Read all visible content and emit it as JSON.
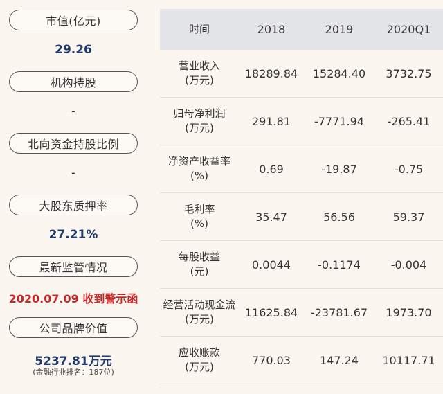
{
  "metrics": [
    {
      "label": "市值(亿元)",
      "value": "29.26"
    },
    {
      "label": "机构持股",
      "value": "-"
    },
    {
      "label": "北向资金持股比例",
      "value": "-"
    },
    {
      "label": "大股东质押率",
      "value": "27.21%"
    },
    {
      "label": "最新监管情况",
      "value": "2020.07.09 收到警示函"
    },
    {
      "label": "公司品牌价值",
      "value": "5237.81万元",
      "note": "(金融行业排名：187位)"
    }
  ],
  "table": {
    "headers": [
      "时间",
      "2018",
      "2019",
      "2020Q1"
    ],
    "rows": [
      {
        "label1": "营业收入",
        "label2": "(万元)",
        "values": [
          "18289.84",
          "15284.40",
          "3732.75"
        ]
      },
      {
        "label1": "归母净利润",
        "label2": "(万元)",
        "values": [
          "291.81",
          "-7771.94",
          "-265.41"
        ]
      },
      {
        "label1": "净资产收益率",
        "label2": "(%)",
        "values": [
          "0.69",
          "-19.87",
          "-0.75"
        ]
      },
      {
        "label1": "毛利率",
        "label2": "(%)",
        "values": [
          "35.47",
          "56.56",
          "59.37"
        ]
      },
      {
        "label1": "每股收益",
        "label2": "(元)",
        "values": [
          "0.0044",
          "-0.1174",
          "-0.004"
        ]
      },
      {
        "label1": "经营活动现金流",
        "label2": "(万元)",
        "values": [
          "11625.84",
          "-23781.67",
          "1973.70"
        ]
      },
      {
        "label1": "应收账款",
        "label2": "(万元)",
        "values": [
          "770.03",
          "147.24",
          "10117.71"
        ]
      }
    ]
  },
  "colors": {
    "value_blue": "#1e3a6e",
    "alert_red": "#c62828",
    "header_bg": "#e4e5e8",
    "page_bg": "#fbf6ef"
  }
}
